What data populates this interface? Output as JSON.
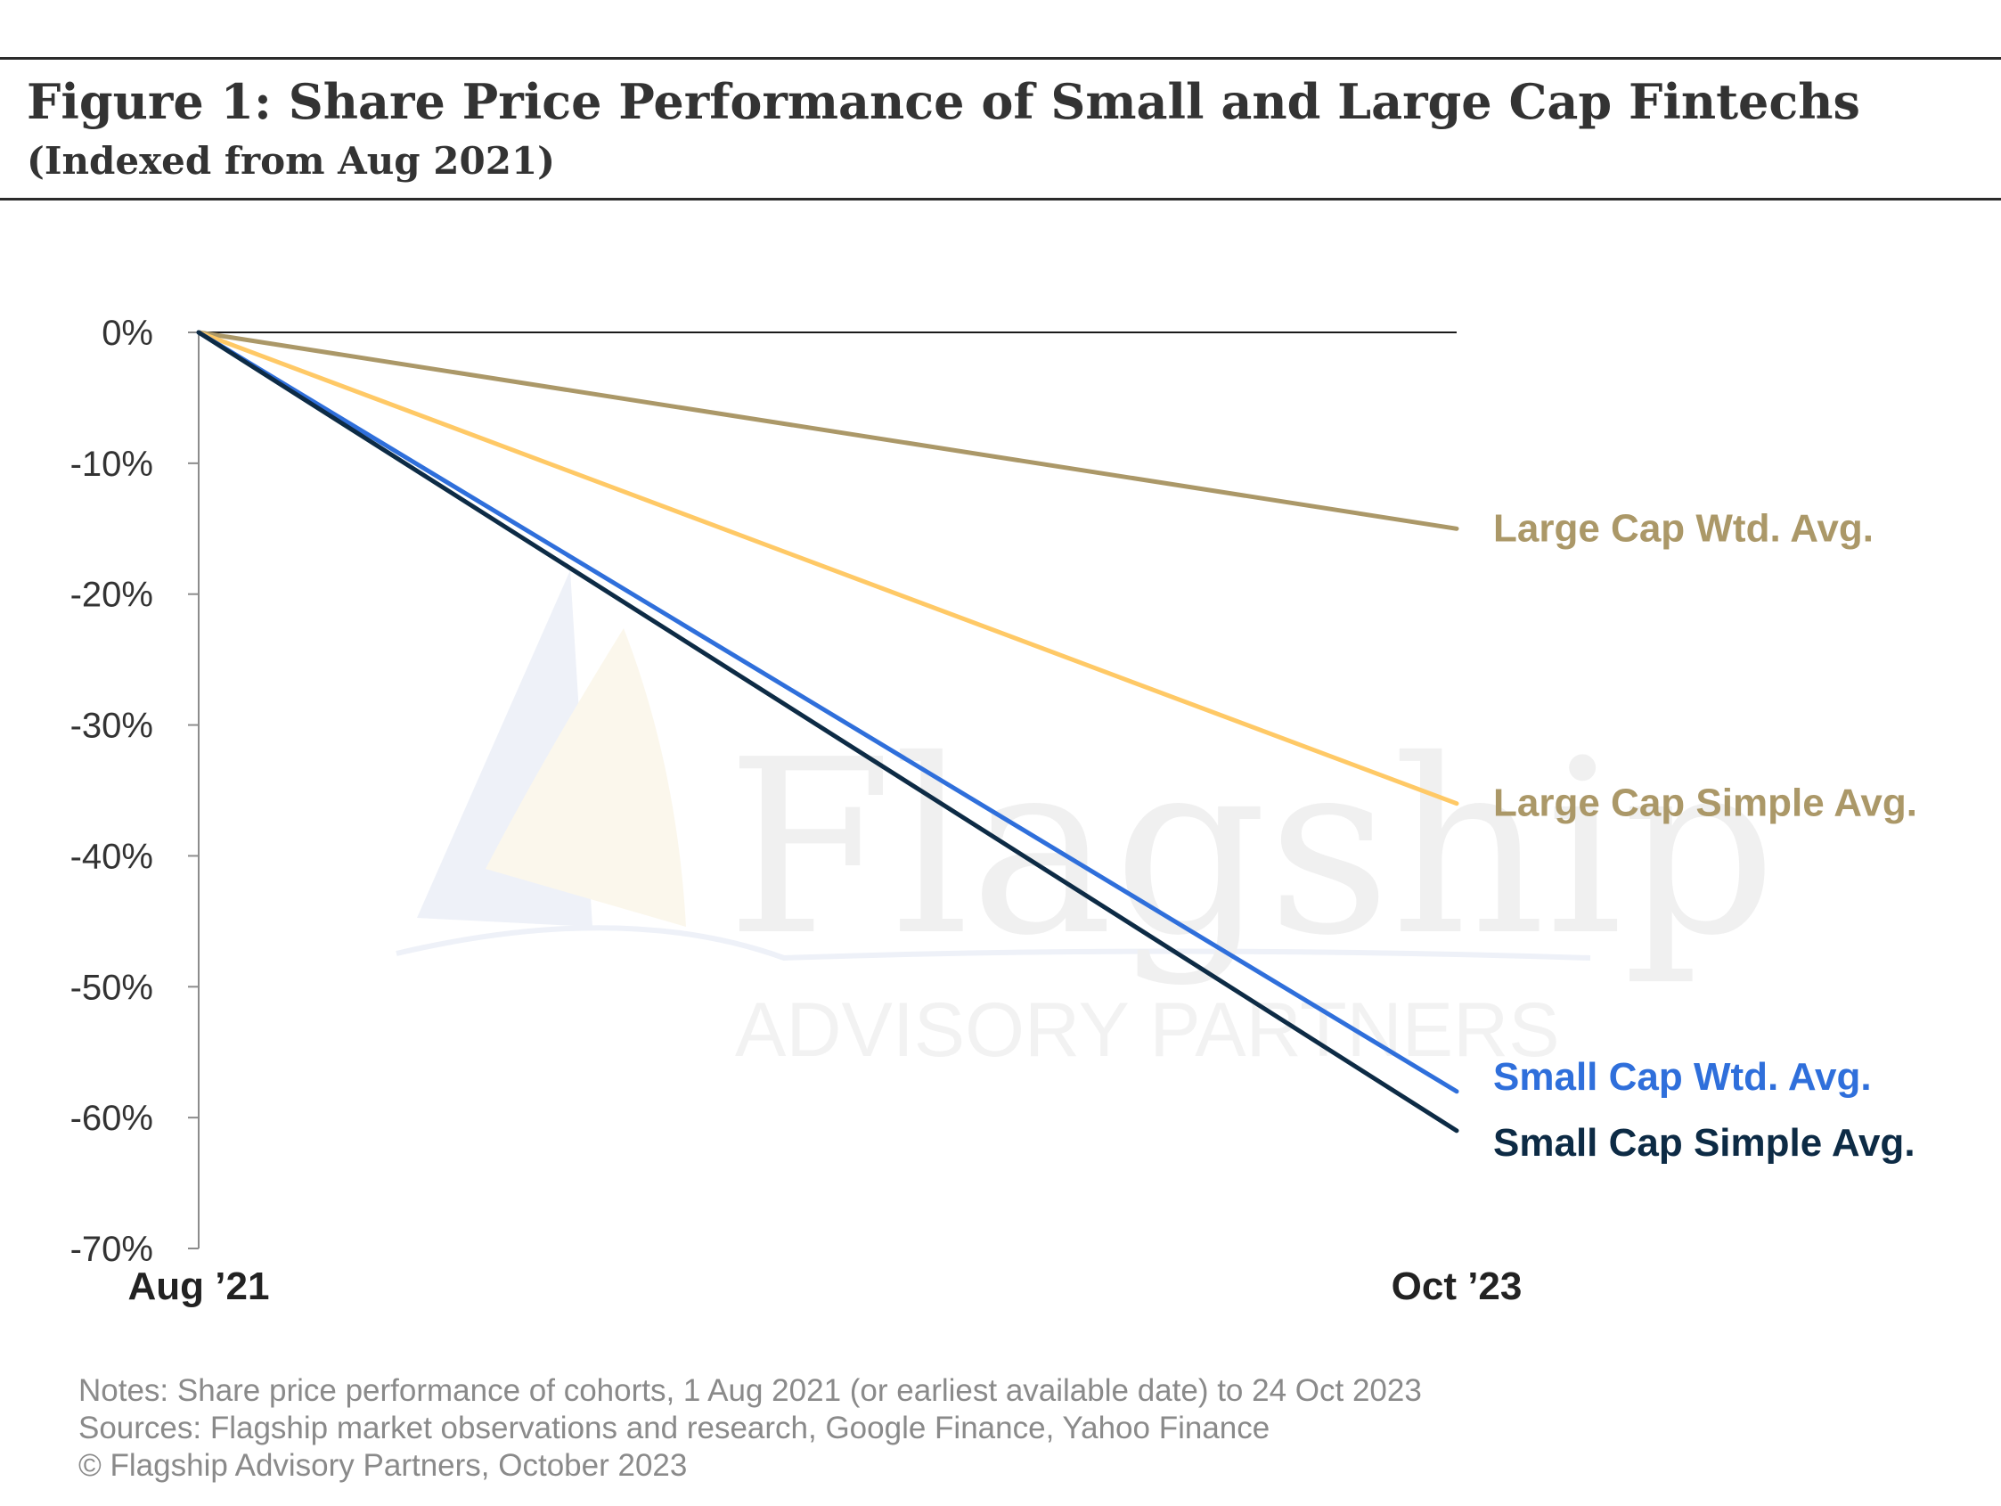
{
  "header": {
    "title": "Figure 1: Share Price Performance of Small and Large Cap Fintechs",
    "subtitle": "(Indexed from Aug 2021)"
  },
  "watermark": {
    "brand": "Flagship",
    "tagline": "ADVISORY PARTNERS",
    "icon": "sailboat-logo-icon"
  },
  "notes": [
    "Notes: Share price performance of cohorts, 1 Aug 2021 (or earliest available date) to 24 Oct 2023",
    "Sources: Flagship market observations and research, Google Finance, Yahoo Finance",
    "© Flagship Advisory Partners, October 2023"
  ],
  "chart_data": {
    "type": "line",
    "x": [
      "Aug ’21",
      "Oct ’23"
    ],
    "ylim": [
      -70,
      0
    ],
    "yticks": [
      0,
      -10,
      -20,
      -30,
      -40,
      -50,
      -60,
      -70
    ],
    "ytick_labels": [
      "0%",
      "-10%",
      "-20%",
      "-30%",
      "-40%",
      "-50%",
      "-60%",
      "-70%"
    ],
    "grid": false,
    "series": [
      {
        "name": "Large Cap Wtd. Avg.",
        "values": [
          0,
          -15
        ],
        "color": "#ab9868"
      },
      {
        "name": "Large Cap Simple Avg.",
        "values": [
          0,
          -36
        ],
        "color": "#ffc966"
      },
      {
        "name": "Small Cap Wtd. Avg.",
        "values": [
          0,
          -58
        ],
        "color": "#2f6fdb"
      },
      {
        "name": "Small Cap Simple Avg.",
        "values": [
          0,
          -61
        ],
        "color": "#0d2b45"
      }
    ],
    "label_colors": [
      "#ab9868",
      "#ab9868",
      "#2f6fdb",
      "#0d2b45"
    ]
  }
}
